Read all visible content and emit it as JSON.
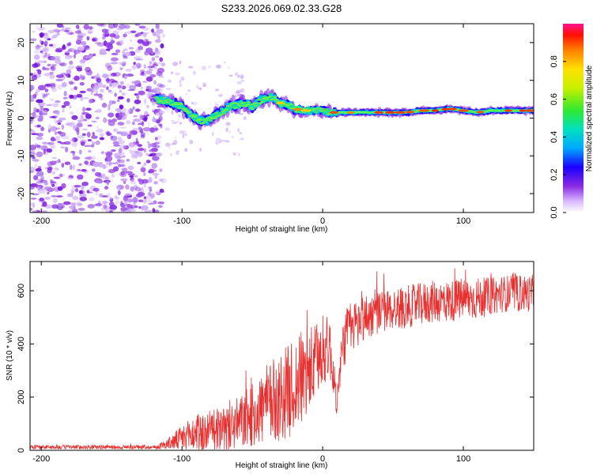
{
  "title": "S233.2026.069.02.33.G28",
  "chart_data": [
    {
      "type": "heatmap",
      "panel": "spectrogram",
      "xlabel": "Height of straight line (km)",
      "ylabel": "Frequency (Hz)",
      "xlim": [
        -208,
        150
      ],
      "ylim": [
        -25,
        25
      ],
      "xticks": [
        -200,
        -100,
        0,
        100
      ],
      "xtick_labels": [
        "-200",
        "-100",
        "0",
        "100"
      ],
      "yticks": [
        -20,
        -10,
        0,
        10,
        20
      ],
      "ytick_labels": [
        "-20",
        "-10",
        "0",
        "10",
        "20"
      ],
      "noise_region_x": [
        -208,
        -113
      ],
      "signal_track": {
        "x": [
          -118,
          -110,
          -100,
          -95,
          -90,
          -85,
          -80,
          -75,
          -70,
          -65,
          -60,
          -55,
          -50,
          -45,
          -40,
          -35,
          -30,
          -25,
          -20,
          -15,
          -10,
          -5,
          0,
          5,
          10,
          20,
          30,
          40,
          50,
          60,
          70,
          80,
          90,
          100,
          110,
          120,
          130,
          140,
          150
        ],
        "y": [
          5,
          4.5,
          3,
          1,
          0,
          -1,
          -0.5,
          1,
          2,
          3.5,
          3.5,
          4,
          3,
          4.5,
          5.5,
          5.5,
          4,
          3.5,
          2.5,
          2,
          2,
          2,
          2,
          1.5,
          1.5,
          1.5,
          1.5,
          1.5,
          1.5,
          1.5,
          2,
          2,
          2.5,
          2,
          1.5,
          2,
          2,
          2,
          2
        ]
      },
      "colorbar": {
        "label": "Normalized spectral amplitude",
        "range": [
          0,
          1
        ],
        "ticks": [
          0.0,
          0.2,
          0.4,
          0.6,
          0.8
        ],
        "tick_labels": [
          "0.0",
          "0.2",
          "0.4",
          "0.6",
          "0.8"
        ]
      }
    },
    {
      "type": "line",
      "panel": "snr",
      "xlabel": "Height of straight line (km)",
      "ylabel": "SNR (10 * v/v)",
      "xlim": [
        -208,
        150
      ],
      "ylim": [
        0,
        710
      ],
      "xticks": [
        -200,
        -100,
        0,
        100
      ],
      "xtick_labels": [
        "-200",
        "-100",
        "0",
        "100"
      ],
      "yticks": [
        0,
        200,
        400,
        600
      ],
      "ytick_labels": [
        "0",
        "200",
        "400",
        "600"
      ],
      "series": [
        {
          "name": "SNR",
          "color": "#e83030",
          "x": [
            -208,
            -190,
            -170,
            -150,
            -130,
            -118,
            -110,
            -100,
            -90,
            -80,
            -70,
            -60,
            -50,
            -40,
            -30,
            -20,
            -15,
            -10,
            -5,
            0,
            5,
            10,
            15,
            20,
            30,
            40,
            50,
            60,
            70,
            80,
            90,
            100,
            110,
            120,
            130,
            140,
            150
          ],
          "mean": [
            12,
            12,
            12,
            12,
            12,
            12,
            25,
            45,
            65,
            70,
            75,
            100,
            130,
            170,
            200,
            240,
            270,
            290,
            330,
            370,
            390,
            180,
            420,
            460,
            500,
            520,
            530,
            540,
            550,
            560,
            560,
            570,
            570,
            580,
            590,
            590,
            590
          ],
          "amp": [
            8,
            8,
            8,
            8,
            8,
            8,
            20,
            50,
            70,
            80,
            90,
            100,
            120,
            150,
            170,
            180,
            180,
            170,
            150,
            130,
            120,
            50,
            110,
            100,
            90,
            80,
            80,
            80,
            80,
            80,
            80,
            80,
            80,
            70,
            70,
            70,
            70
          ]
        }
      ]
    }
  ]
}
